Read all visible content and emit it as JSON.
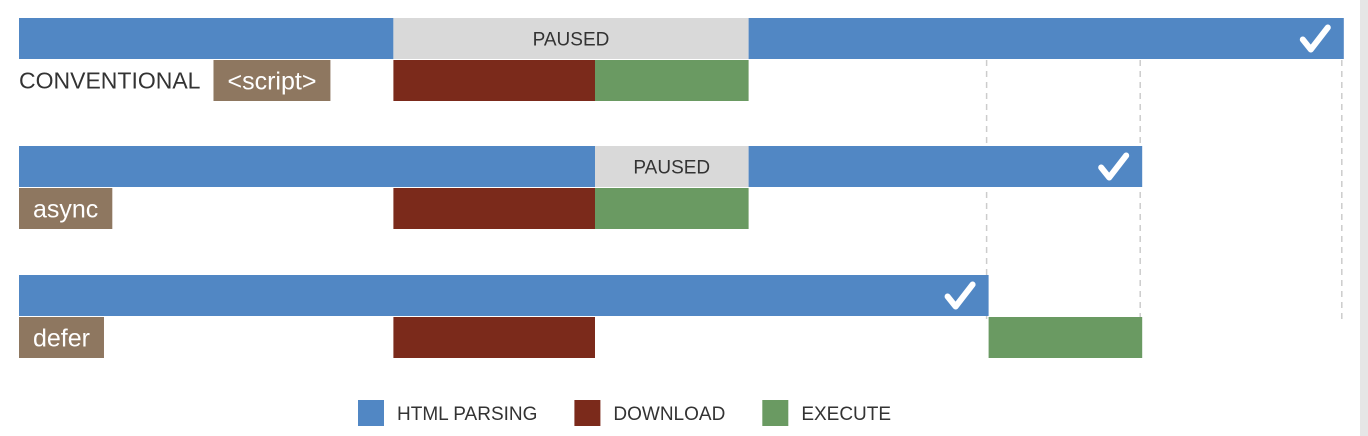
{
  "colors": {
    "html_parsing": "#5187c4",
    "download": "#7b2a1b",
    "execute": "#6a9a62",
    "paused": "#d9d9d9",
    "tag": "#8e7760",
    "text": "#333333",
    "guide": "#cccccc",
    "check": "#ffffff"
  },
  "check_icon": "check-mark-icon",
  "rows": [
    {
      "id": "conventional",
      "caption": "CONVENTIONAL",
      "tag": "<script>",
      "parse_segments": [
        {
          "kind": "parse",
          "start": 0,
          "end": 39
        },
        {
          "kind": "paused",
          "start": 39,
          "end": 76,
          "label": "PAUSED"
        },
        {
          "kind": "parse",
          "start": 76,
          "end": 138
        }
      ],
      "script_segments": [
        {
          "kind": "download",
          "start": 39,
          "end": 60
        },
        {
          "kind": "execute",
          "start": 60,
          "end": 76
        }
      ],
      "finish": 138
    },
    {
      "id": "async",
      "caption": "",
      "tag": "async",
      "parse_segments": [
        {
          "kind": "parse",
          "start": 0,
          "end": 60
        },
        {
          "kind": "paused",
          "start": 60,
          "end": 76,
          "label": "PAUSED"
        },
        {
          "kind": "parse",
          "start": 76,
          "end": 117
        }
      ],
      "script_segments": [
        {
          "kind": "download",
          "start": 39,
          "end": 60
        },
        {
          "kind": "execute",
          "start": 60,
          "end": 76
        }
      ],
      "finish": 117
    },
    {
      "id": "defer",
      "caption": "",
      "tag": "defer",
      "parse_segments": [
        {
          "kind": "parse",
          "start": 0,
          "end": 101
        }
      ],
      "script_segments": [
        {
          "kind": "download",
          "start": 39,
          "end": 60
        },
        {
          "kind": "execute",
          "start": 101,
          "end": 117
        }
      ],
      "finish": 101
    }
  ],
  "guides": [
    101,
    117,
    138
  ],
  "legend": [
    {
      "key": "html_parsing",
      "label": "HTML PARSING"
    },
    {
      "key": "download",
      "label": "DOWNLOAD"
    },
    {
      "key": "execute",
      "label": "EXECUTE"
    }
  ]
}
